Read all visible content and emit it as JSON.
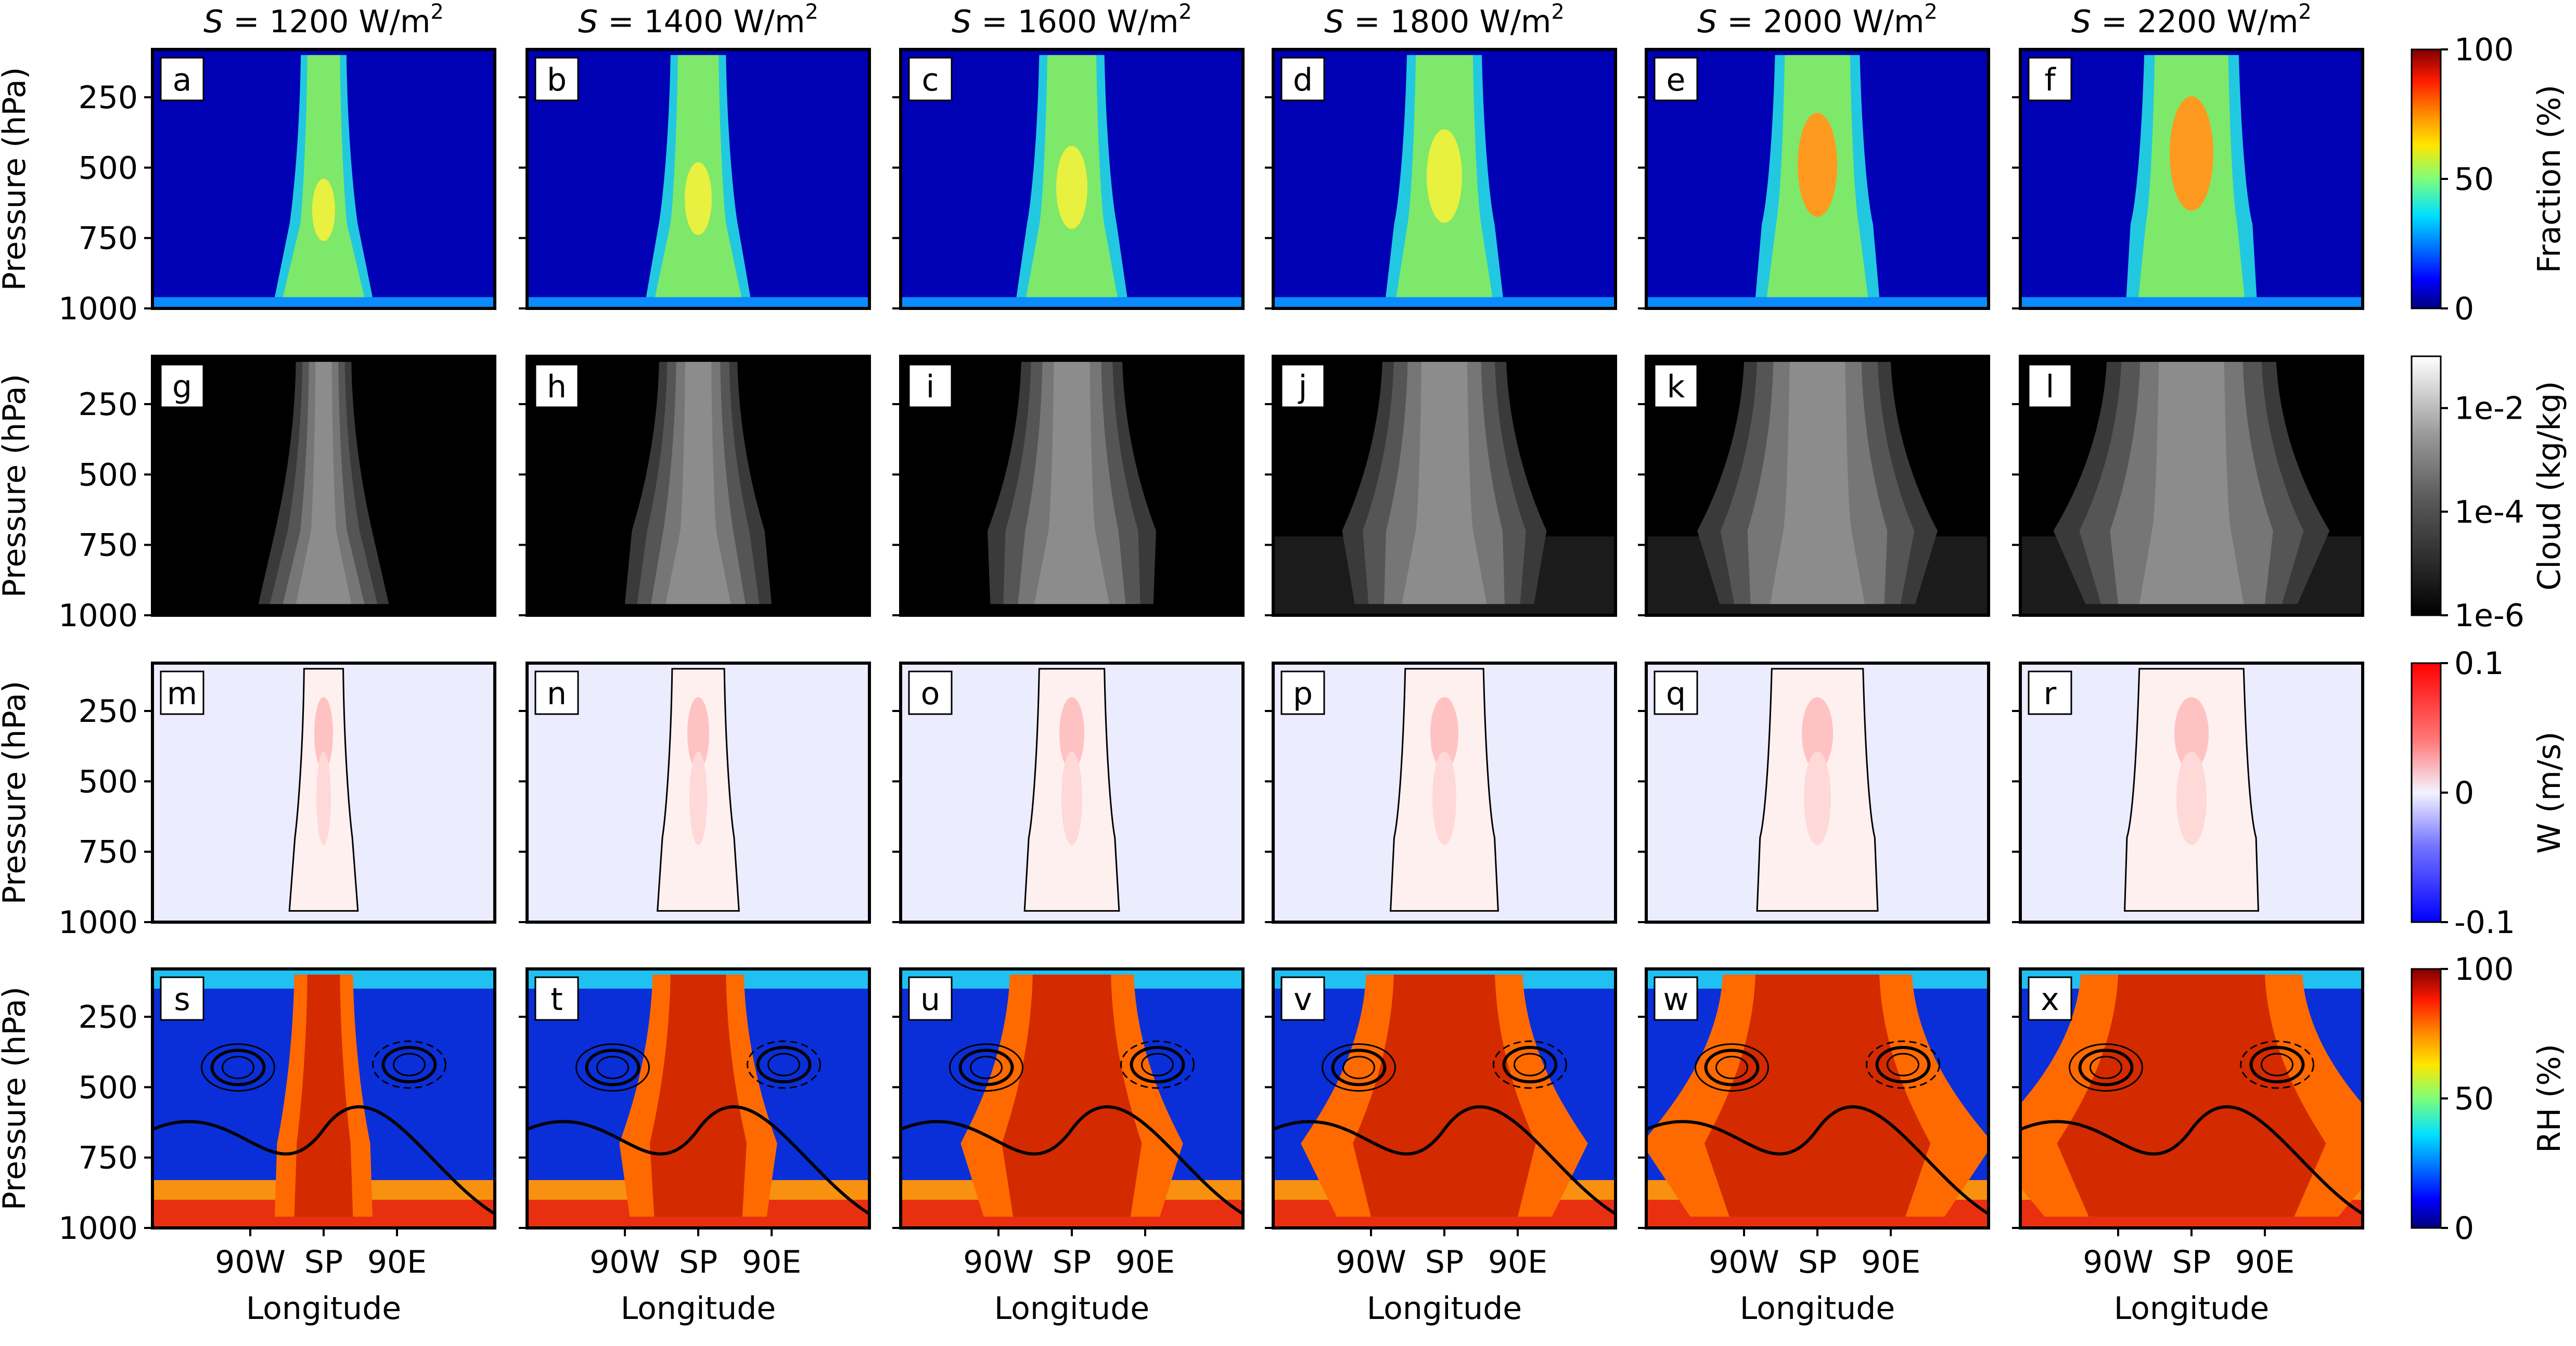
{
  "figure": {
    "columns": [
      {
        "label": "S = 1200 W/m²",
        "S": 1200,
        "units": "W/m",
        "exp": "2"
      },
      {
        "label": "S = 1400 W/m²",
        "S": 1400,
        "units": "W/m",
        "exp": "2"
      },
      {
        "label": "S = 1600 W/m²",
        "S": 1600,
        "units": "W/m",
        "exp": "2"
      },
      {
        "label": "S = 1800 W/m²",
        "S": 1800,
        "units": "W/m",
        "exp": "2"
      },
      {
        "label": "S = 2000 W/m²",
        "S": 2000,
        "units": "W/m",
        "exp": "2"
      },
      {
        "label": "S = 2200 W/m²",
        "S": 2200,
        "units": "W/m",
        "exp": "2"
      }
    ],
    "ylabel": "Pressure (hPa)",
    "xlabel": "Longitude",
    "ytick_labels": [
      "250",
      "500",
      "750",
      "1000"
    ],
    "xtick_labels": [
      "90W",
      "SP",
      "90E"
    ]
  },
  "chart_data": [
    {
      "type": "heatmap",
      "row": 1,
      "panel_letters": [
        "a",
        "b",
        "c",
        "d",
        "e",
        "f"
      ],
      "variable": "cloud fraction",
      "xlabel": "Longitude",
      "ylabel": "Pressure (hPa)",
      "y_ticks": [
        250,
        500,
        750,
        1000
      ],
      "x_ticks": [
        "90W",
        "SP",
        "90E"
      ],
      "colorbar": {
        "label": "Fraction (%)",
        "range": [
          0,
          100
        ],
        "ticks": [
          "0",
          "50",
          "100"
        ],
        "colormap": "jet"
      }
    },
    {
      "type": "heatmap",
      "row": 2,
      "panel_letters": [
        "g",
        "h",
        "i",
        "j",
        "k",
        "l"
      ],
      "variable": "cloud water",
      "xlabel": "Longitude",
      "ylabel": "Pressure (hPa)",
      "y_ticks": [
        250,
        500,
        750,
        1000
      ],
      "x_ticks": [
        "90W",
        "SP",
        "90E"
      ],
      "colorbar": {
        "label": "Cloud (kg/kg)",
        "scale": "log",
        "range": [
          "1e-6",
          "1e-1"
        ],
        "ticks": [
          "1e-6",
          "1e-4",
          "1e-2"
        ],
        "colormap": "gray"
      }
    },
    {
      "type": "heatmap",
      "row": 3,
      "panel_letters": [
        "m",
        "n",
        "o",
        "p",
        "q",
        "r"
      ],
      "variable": "vertical velocity",
      "xlabel": "Longitude",
      "ylabel": "Pressure (hPa)",
      "y_ticks": [
        250,
        500,
        750,
        1000
      ],
      "x_ticks": [
        "90W",
        "SP",
        "90E"
      ],
      "colorbar": {
        "label": "W (m/s)",
        "range": [
          -0.1,
          0.1
        ],
        "ticks": [
          "-0.1",
          "0",
          "0.1"
        ],
        "colormap": "bwr"
      }
    },
    {
      "type": "heatmap",
      "row": 4,
      "panel_letters": [
        "s",
        "t",
        "u",
        "v",
        "w",
        "x"
      ],
      "variable": "relative humidity",
      "xlabel": "Longitude",
      "ylabel": "Pressure (hPa)",
      "y_ticks": [
        250,
        500,
        750,
        1000
      ],
      "x_ticks": [
        "90W",
        "SP",
        "90E"
      ],
      "colorbar": {
        "label": "RH (%)",
        "range": [
          0,
          100
        ],
        "ticks": [
          "0",
          "50",
          "100"
        ],
        "colormap": "jet"
      }
    }
  ]
}
